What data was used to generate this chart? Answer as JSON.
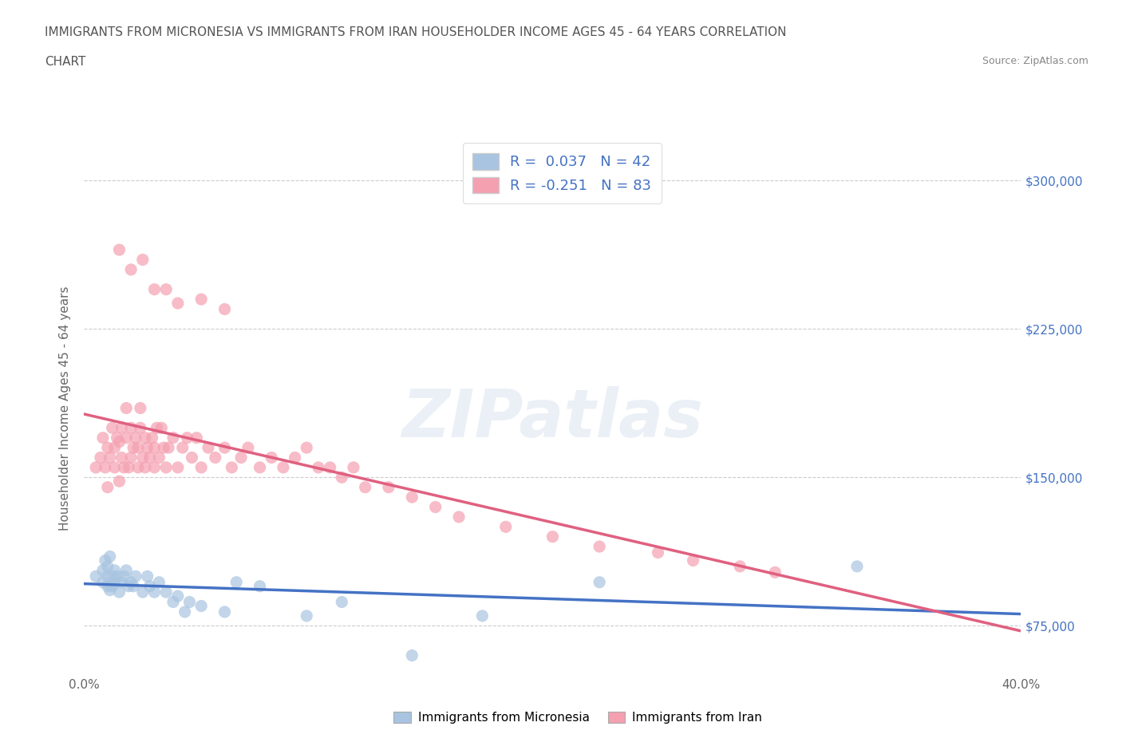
{
  "title_line1": "IMMIGRANTS FROM MICRONESIA VS IMMIGRANTS FROM IRAN HOUSEHOLDER INCOME AGES 45 - 64 YEARS CORRELATION",
  "title_line2": "CHART",
  "source_text": "Source: ZipAtlas.com",
  "ylabel": "Householder Income Ages 45 - 64 years",
  "xlim": [
    0.0,
    0.4
  ],
  "ylim": [
    50000,
    320000
  ],
  "yticks": [
    75000,
    150000,
    225000,
    300000
  ],
  "ytick_labels": [
    "$75,000",
    "$150,000",
    "$225,000",
    "$300,000"
  ],
  "xticks": [
    0.0,
    0.05,
    0.1,
    0.15,
    0.2,
    0.25,
    0.3,
    0.35,
    0.4
  ],
  "xtick_labels": [
    "0.0%",
    "",
    "",
    "",
    "",
    "",
    "",
    "",
    "40.0%"
  ],
  "micronesia_color": "#a8c4e0",
  "iran_color": "#f4a0b0",
  "micronesia_line_color": "#4472c4",
  "iran_line_color": "#e06080",
  "R_micronesia": 0.037,
  "N_micronesia": 42,
  "R_iran": -0.251,
  "N_iran": 83,
  "grid_color": "#cccccc",
  "background_color": "#ffffff",
  "watermark_text": "ZIPatlas",
  "micronesia_x": [
    0.005,
    0.008,
    0.008,
    0.009,
    0.01,
    0.01,
    0.01,
    0.011,
    0.011,
    0.012,
    0.012,
    0.013,
    0.013,
    0.014,
    0.015,
    0.016,
    0.017,
    0.018,
    0.019,
    0.02,
    0.021,
    0.022,
    0.025,
    0.027,
    0.028,
    0.03,
    0.032,
    0.035,
    0.038,
    0.04,
    0.043,
    0.045,
    0.05,
    0.06,
    0.065,
    0.075,
    0.095,
    0.11,
    0.14,
    0.17,
    0.22,
    0.33
  ],
  "micronesia_y": [
    100000,
    97000,
    103000,
    108000,
    95000,
    100000,
    105000,
    93000,
    110000,
    95000,
    100000,
    97000,
    103000,
    100000,
    92000,
    97000,
    100000,
    103000,
    95000,
    97000,
    95000,
    100000,
    92000,
    100000,
    95000,
    92000,
    97000,
    92000,
    87000,
    90000,
    82000,
    87000,
    85000,
    82000,
    97000,
    95000,
    80000,
    87000,
    60000,
    80000,
    97000,
    105000
  ],
  "iran_x": [
    0.005,
    0.007,
    0.008,
    0.009,
    0.01,
    0.01,
    0.011,
    0.012,
    0.013,
    0.013,
    0.014,
    0.015,
    0.015,
    0.016,
    0.016,
    0.017,
    0.018,
    0.018,
    0.019,
    0.02,
    0.02,
    0.021,
    0.022,
    0.023,
    0.023,
    0.024,
    0.024,
    0.025,
    0.026,
    0.026,
    0.027,
    0.028,
    0.029,
    0.03,
    0.03,
    0.031,
    0.032,
    0.033,
    0.034,
    0.035,
    0.036,
    0.038,
    0.04,
    0.042,
    0.044,
    0.046,
    0.048,
    0.05,
    0.053,
    0.056,
    0.06,
    0.063,
    0.067,
    0.07,
    0.075,
    0.08,
    0.085,
    0.09,
    0.095,
    0.1,
    0.105,
    0.11,
    0.115,
    0.12,
    0.13,
    0.14,
    0.15,
    0.16,
    0.18,
    0.2,
    0.22,
    0.245,
    0.26,
    0.28,
    0.295,
    0.015,
    0.02,
    0.025,
    0.03,
    0.035,
    0.04,
    0.05,
    0.06
  ],
  "iran_y": [
    155000,
    160000,
    170000,
    155000,
    145000,
    165000,
    160000,
    175000,
    155000,
    165000,
    170000,
    148000,
    168000,
    160000,
    175000,
    155000,
    170000,
    185000,
    155000,
    160000,
    175000,
    165000,
    170000,
    155000,
    165000,
    175000,
    185000,
    160000,
    155000,
    170000,
    165000,
    160000,
    170000,
    155000,
    165000,
    175000,
    160000,
    175000,
    165000,
    155000,
    165000,
    170000,
    155000,
    165000,
    170000,
    160000,
    170000,
    155000,
    165000,
    160000,
    165000,
    155000,
    160000,
    165000,
    155000,
    160000,
    155000,
    160000,
    165000,
    155000,
    155000,
    150000,
    155000,
    145000,
    145000,
    140000,
    135000,
    130000,
    125000,
    120000,
    115000,
    112000,
    108000,
    105000,
    102000,
    265000,
    255000,
    260000,
    245000,
    245000,
    238000,
    240000,
    235000
  ]
}
